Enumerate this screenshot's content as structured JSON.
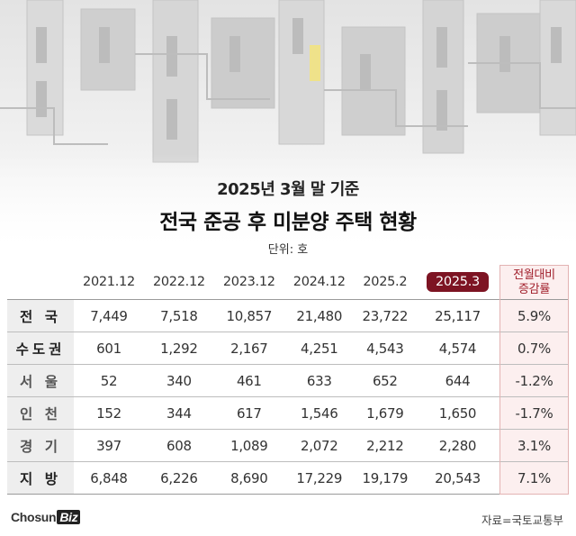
{
  "chart_data": {
    "type": "table",
    "subtitle": "2025년 3월 말 기준",
    "title": "전국 준공 후 미분양 주택 현황",
    "unit": "단위: 호",
    "columns": [
      "2021.12",
      "2022.12",
      "2023.12",
      "2024.12",
      "2025.2",
      "2025.3"
    ],
    "highlight_column": "2025.3",
    "change_header_line1": "전월대비",
    "change_header_line2": "증감률",
    "rows": [
      {
        "label": "전 국",
        "values": [
          "7,449",
          "7,518",
          "10,857",
          "21,480",
          "23,722",
          "25,117"
        ],
        "change": "5.9%"
      },
      {
        "label": "수도권",
        "values": [
          "601",
          "1,292",
          "2,167",
          "4,251",
          "4,543",
          "4,574"
        ],
        "change": "0.7%"
      },
      {
        "label": "서 울",
        "values": [
          "52",
          "340",
          "461",
          "633",
          "652",
          "644"
        ],
        "change": "-1.2%"
      },
      {
        "label": "인 천",
        "values": [
          "152",
          "344",
          "617",
          "1,546",
          "1,679",
          "1,650"
        ],
        "change": "-1.7%"
      },
      {
        "label": "경 기",
        "values": [
          "397",
          "608",
          "1,089",
          "2,072",
          "2,212",
          "2,280"
        ],
        "change": "3.1%"
      },
      {
        "label": "지 방",
        "values": [
          "6,848",
          "6,226",
          "8,690",
          "17,229",
          "19,179",
          "20,543"
        ],
        "change": "7.1%"
      }
    ],
    "colors": {
      "highlight": "#7d1423",
      "change_bg": "#fcefef",
      "change_text": "#a01e2a",
      "row_head_bg": "#eeeeee"
    }
  },
  "footer": {
    "logo_main": "Chosun",
    "logo_badge": "Biz",
    "source": "자료=국토교통부"
  }
}
